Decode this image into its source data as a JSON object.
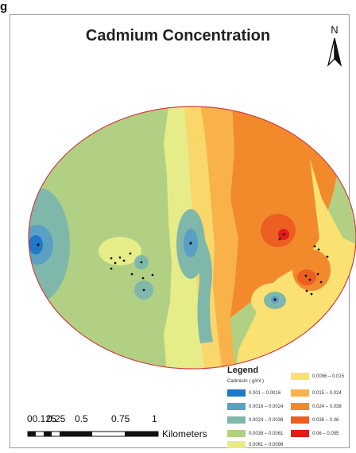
{
  "figure_label": "g",
  "title": "Cadmium Concentration",
  "north_arrow": {
    "letter": "N",
    "icon": "north-arrow-icon"
  },
  "legend": {
    "title": "Legend",
    "subtitle": "Cadmium ( g/ml )",
    "classes": [
      {
        "label": "0.001 – 0.0016",
        "color": "#1f78c8"
      },
      {
        "label": "0.0016 – 0.0024",
        "color": "#5a9fc4"
      },
      {
        "label": "0.0024 – 0.0038",
        "color": "#7fb8aa"
      },
      {
        "label": "0.0038 – 0.0061",
        "color": "#b2d084"
      },
      {
        "label": "0.0061 – 0.0096",
        "color": "#e6ec88"
      },
      {
        "label": "0.0096 – 0.015",
        "color": "#fbe072"
      },
      {
        "label": "0.015 – 0.024",
        "color": "#f9b24a"
      },
      {
        "label": "0.024 – 0.038",
        "color": "#f28a2c"
      },
      {
        "label": "0.038 – 0.06",
        "color": "#ec5e22"
      },
      {
        "label": "0.06 – 0.095",
        "color": "#e01b1b"
      }
    ]
  },
  "scale_bar": {
    "labels": [
      "00.125",
      "0.25",
      "0.5",
      "0.75",
      "1"
    ],
    "unit": "Kilometers"
  }
}
